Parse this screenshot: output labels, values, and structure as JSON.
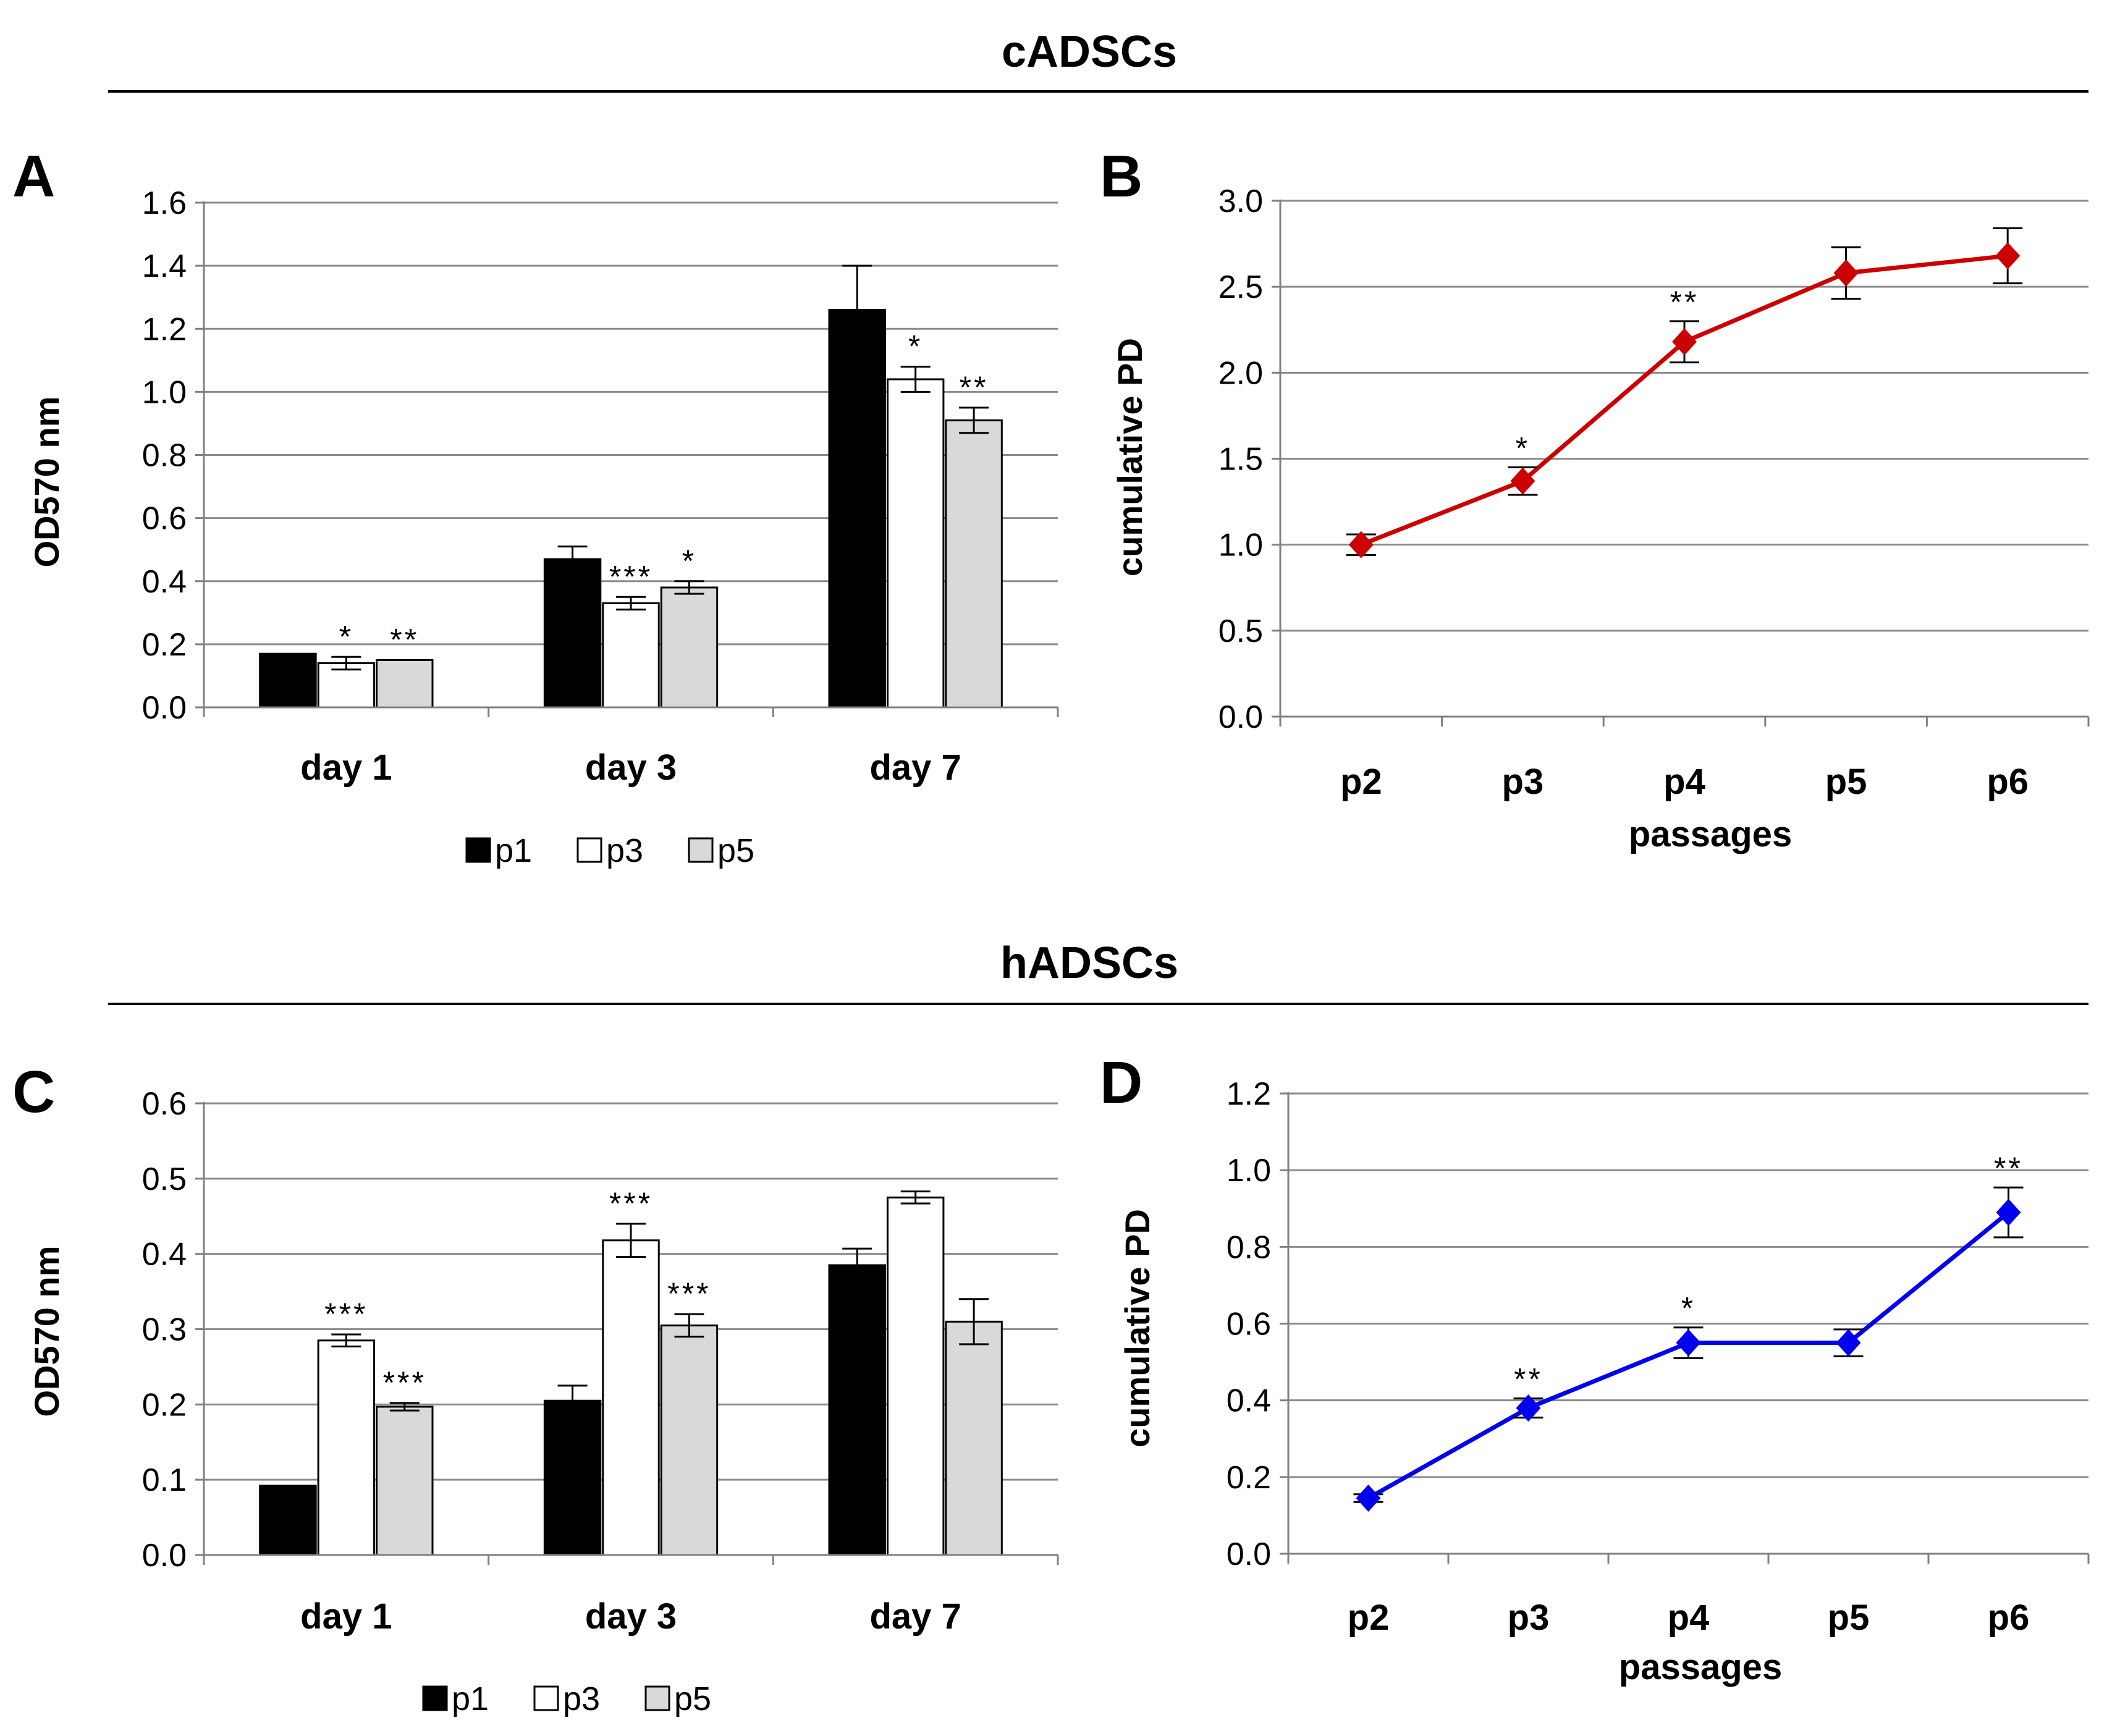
{
  "sections": [
    {
      "title": "cADSCs"
    },
    {
      "title": "hADSCs"
    }
  ],
  "colors": {
    "p1": "#000000",
    "p3": "#ffffff",
    "p5": "#d9d9d9",
    "cADSCs_line": "#cc0000",
    "hADSCs_line": "#0000ee",
    "grid": "#8c8c8c"
  },
  "chart_data": [
    {
      "panel": "A",
      "type": "bar",
      "title": "",
      "section": "cADSCs",
      "xlabel": "",
      "ylabel": "OD570 nm",
      "ylim": [
        0,
        1.6
      ],
      "yticks": [
        "0.0",
        "0.2",
        "0.4",
        "0.6",
        "0.8",
        "1.0",
        "1.2",
        "1.4",
        "1.6"
      ],
      "categories": [
        "day 1",
        "day 3",
        "day 7"
      ],
      "legend": [
        "p1",
        "p3",
        "p5"
      ],
      "series": [
        {
          "name": "p1",
          "values": [
            0.17,
            0.47,
            1.26
          ],
          "errors": [
            0.0,
            0.04,
            0.14
          ],
          "sig": [
            "",
            "",
            ""
          ]
        },
        {
          "name": "p3",
          "values": [
            0.14,
            0.33,
            1.04
          ],
          "errors": [
            0.02,
            0.02,
            0.04
          ],
          "sig": [
            "*",
            "***",
            "*"
          ]
        },
        {
          "name": "p5",
          "values": [
            0.15,
            0.38,
            0.91
          ],
          "errors": [
            0.0,
            0.02,
            0.04
          ],
          "sig": [
            "**",
            "*",
            "**"
          ]
        }
      ]
    },
    {
      "panel": "B",
      "type": "line",
      "title": "",
      "section": "cADSCs",
      "xlabel": "passages",
      "ylabel": "cumulative PD",
      "ylim": [
        0,
        3.0
      ],
      "yticks": [
        "0.0",
        "0.5",
        "1.0",
        "1.5",
        "2.0",
        "2.5",
        "3.0"
      ],
      "categories": [
        "p2",
        "p3",
        "p4",
        "p5",
        "p6"
      ],
      "series": [
        {
          "name": "cumulative PD",
          "values": [
            1.0,
            1.37,
            2.18,
            2.58,
            2.68
          ],
          "errors": [
            0.06,
            0.08,
            0.12,
            0.15,
            0.16
          ],
          "sig": [
            "",
            "*",
            "**",
            "",
            ""
          ]
        }
      ]
    },
    {
      "panel": "C",
      "type": "bar",
      "title": "",
      "section": "hADSCs",
      "xlabel": "",
      "ylabel": "OD570 nm",
      "ylim": [
        0,
        0.6
      ],
      "yticks": [
        "0.0",
        "0.1",
        "0.2",
        "0.3",
        "0.4",
        "0.5",
        "0.6"
      ],
      "categories": [
        "day 1",
        "day 3",
        "day 7"
      ],
      "legend": [
        "p1",
        "p3",
        "p5"
      ],
      "series": [
        {
          "name": "p1",
          "values": [
            0.092,
            0.205,
            0.385
          ],
          "errors": [
            0.0,
            0.02,
            0.022
          ],
          "sig": [
            "",
            "",
            ""
          ]
        },
        {
          "name": "p3",
          "values": [
            0.285,
            0.418,
            0.475
          ],
          "errors": [
            0.008,
            0.022,
            0.008
          ],
          "sig": [
            "***",
            "***",
            ""
          ]
        },
        {
          "name": "p5",
          "values": [
            0.197,
            0.305,
            0.31
          ],
          "errors": [
            0.005,
            0.015,
            0.03
          ],
          "sig": [
            "***",
            "***",
            ""
          ]
        }
      ]
    },
    {
      "panel": "D",
      "type": "line",
      "title": "",
      "section": "hADSCs",
      "xlabel": "passages",
      "ylabel": "cumulative PD",
      "ylim": [
        0,
        1.2
      ],
      "yticks": [
        "0.0",
        "0.2",
        "0.4",
        "0.6",
        "0.8",
        "1.0",
        "1.2"
      ],
      "categories": [
        "p2",
        "p3",
        "p4",
        "p5",
        "p6"
      ],
      "series": [
        {
          "name": "cumulative PD",
          "values": [
            0.145,
            0.38,
            0.55,
            0.55,
            0.89
          ],
          "errors": [
            0.01,
            0.025,
            0.04,
            0.035,
            0.065
          ],
          "sig": [
            "",
            "**",
            "*",
            "",
            "**"
          ]
        }
      ]
    }
  ]
}
